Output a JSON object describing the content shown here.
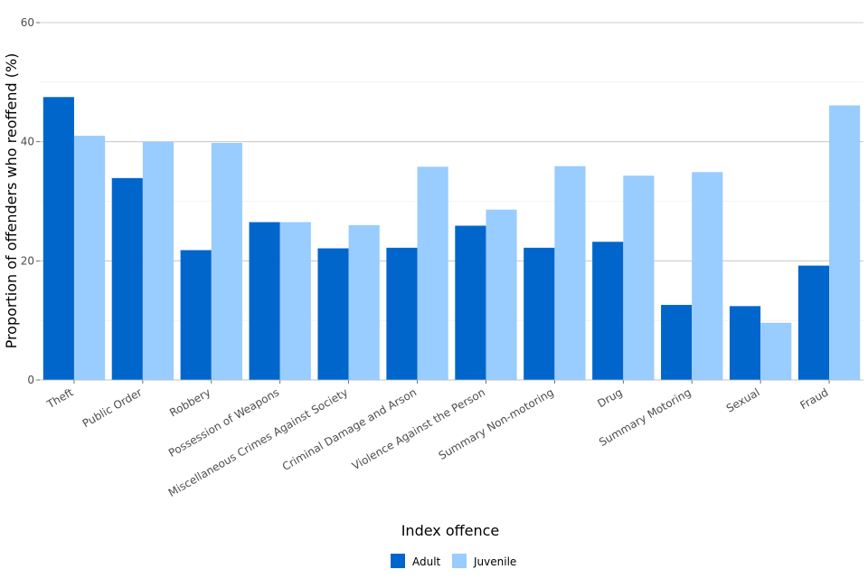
{
  "chart_data": {
    "type": "bar",
    "title": "",
    "xlabel": "Index offence",
    "ylabel": "Proportion of offenders who reoffend (%)",
    "ylim": [
      0,
      60
    ],
    "yticks": [
      0,
      20,
      40,
      60
    ],
    "grid": true,
    "legend_position": "bottom",
    "categories": [
      "Theft",
      "Public Order",
      "Robbery",
      "Possession of Weapons",
      "Miscellaneous Crimes Against Society",
      "Criminal Damage and Arson",
      "Violence Against the Person",
      "Summary Non-motoring",
      "Drug",
      "Summary Motoring",
      "Sexual",
      "Fraud"
    ],
    "series": [
      {
        "name": "Adult",
        "color": "#0066cc",
        "values": [
          47.5,
          33.9,
          21.8,
          26.5,
          22.1,
          22.2,
          25.9,
          22.2,
          23.2,
          12.6,
          12.4,
          19.2
        ]
      },
      {
        "name": "Juvenile",
        "color": "#99ccff",
        "values": [
          41.0,
          40.0,
          39.8,
          26.5,
          26.0,
          35.8,
          28.6,
          35.9,
          34.3,
          34.9,
          9.6,
          46.1
        ]
      }
    ]
  }
}
